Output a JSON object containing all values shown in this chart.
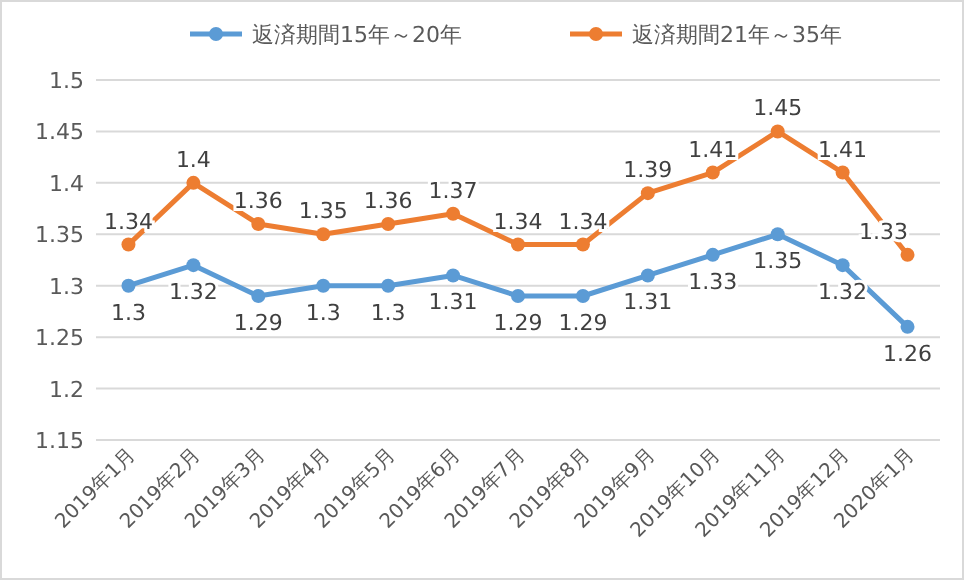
{
  "chart_data": {
    "type": "line",
    "categories": [
      "2019年1月",
      "2019年2月",
      "2019年3月",
      "2019年4月",
      "2019年5月",
      "2019年6月",
      "2019年7月",
      "2019年8月",
      "2019年9月",
      "2019年10月",
      "2019年11月",
      "2019年12月",
      "2020年1月"
    ],
    "series": [
      {
        "name": "返済期間15年～20年",
        "color": "#5b9bd5",
        "values": [
          1.3,
          1.32,
          1.29,
          1.3,
          1.3,
          1.31,
          1.29,
          1.29,
          1.31,
          1.33,
          1.35,
          1.32,
          1.26
        ]
      },
      {
        "name": "返済期間21年～35年",
        "color": "#ed7d31",
        "values": [
          1.34,
          1.4,
          1.36,
          1.35,
          1.36,
          1.37,
          1.34,
          1.34,
          1.39,
          1.41,
          1.45,
          1.41,
          1.33
        ]
      }
    ],
    "ylim": [
      1.15,
      1.5
    ],
    "yticks": [
      1.15,
      1.2,
      1.25,
      1.3,
      1.35,
      1.4,
      1.45,
      1.5
    ],
    "grid": "y",
    "legend": "top",
    "marker": "circle",
    "line_style": "solid",
    "data_labels": true
  }
}
